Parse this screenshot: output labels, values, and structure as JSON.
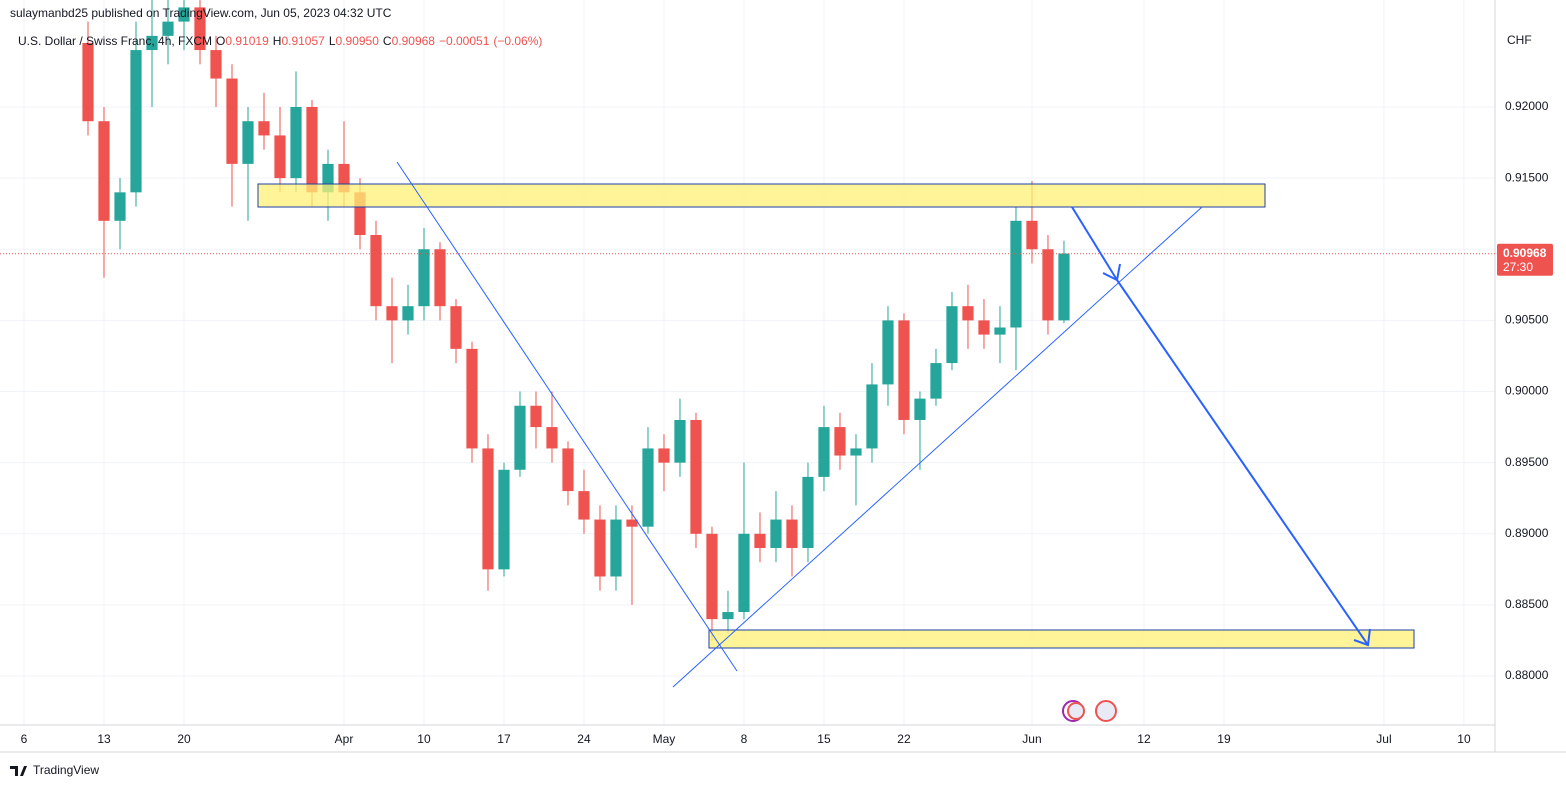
{
  "header": "sulaymanbd25 published on TradingView.com, Jun 05, 2023 04:32 UTC",
  "branding": "TradingView",
  "chart_data": {
    "type": "candlestick",
    "legend": {
      "symbol": "U.S. Dollar / Swiss Franc, 4h, FXCM",
      "open_prefix": "O",
      "open": {
        "value": 0.91019,
        "label": "0.91019"
      },
      "high_prefix": "H",
      "high": {
        "value": 0.91057,
        "label": "0.91057"
      },
      "low_prefix": "L",
      "low": {
        "value": 0.9095,
        "label": "0.90950"
      },
      "close_prefix": "C",
      "close": {
        "value": 0.90968,
        "label": "0.90968"
      },
      "change": {
        "value": -0.00051,
        "label": "−0.00051"
      },
      "change_pct": {
        "value": -0.06,
        "label": "(−0.06%)"
      }
    },
    "y_unit": "CHF",
    "last_price": {
      "value": 0.90968,
      "label": "0.90968"
    },
    "countdown": "27:30",
    "up_color": "#26a69a",
    "down_color": "#ef5350",
    "grid": true,
    "x": [
      4,
      5,
      6,
      7,
      8,
      9,
      10,
      11,
      12,
      13,
      14,
      15,
      16,
      17,
      18,
      19,
      20,
      21,
      22,
      23,
      24,
      25,
      26,
      27,
      28,
      29,
      30,
      31,
      32,
      33,
      34,
      35,
      36,
      37,
      38,
      39,
      40,
      41,
      42,
      43,
      44,
      45,
      46,
      47,
      48,
      49,
      50,
      51,
      52,
      53,
      54,
      55,
      56,
      57,
      58,
      59,
      60,
      61,
      62,
      63,
      64,
      65
    ],
    "open": [
      0.9245,
      0.919,
      0.912,
      0.914,
      0.924,
      0.925,
      0.926,
      0.927,
      0.924,
      0.922,
      0.916,
      0.919,
      0.918,
      0.915,
      0.92,
      0.914,
      0.916,
      0.914,
      0.911,
      0.906,
      0.905,
      0.906,
      0.91,
      0.906,
      0.903,
      0.896,
      0.8875,
      0.8945,
      0.899,
      0.8975,
      0.896,
      0.893,
      0.891,
      0.887,
      0.891,
      0.8905,
      0.896,
      0.895,
      0.898,
      0.89,
      0.884,
      0.8845,
      0.89,
      0.889,
      0.891,
      0.889,
      0.894,
      0.8975,
      0.8955,
      0.896,
      0.9005,
      0.905,
      0.898,
      0.8995,
      0.902,
      0.906,
      0.905,
      0.904,
      0.9045,
      0.912,
      0.91,
      0.905
    ],
    "high": [
      0.926,
      0.92,
      0.915,
      0.926,
      0.928,
      0.929,
      0.929,
      0.928,
      0.925,
      0.923,
      0.92,
      0.921,
      0.92,
      0.9225,
      0.9205,
      0.917,
      0.919,
      0.915,
      0.912,
      0.908,
      0.9075,
      0.9115,
      0.9105,
      0.9065,
      0.9035,
      0.897,
      0.895,
      0.9,
      0.9,
      0.9,
      0.8965,
      0.8945,
      0.892,
      0.892,
      0.892,
      0.8975,
      0.897,
      0.8995,
      0.8985,
      0.8905,
      0.886,
      0.895,
      0.8915,
      0.893,
      0.892,
      0.895,
      0.899,
      0.8985,
      0.897,
      0.902,
      0.906,
      0.9055,
      0.9,
      0.903,
      0.907,
      0.9075,
      0.9065,
      0.906,
      0.913,
      0.9148,
      0.911,
      0.9106
    ],
    "low": [
      0.918,
      0.908,
      0.91,
      0.913,
      0.92,
      0.923,
      0.924,
      0.923,
      0.92,
      0.913,
      0.912,
      0.917,
      0.914,
      0.914,
      0.913,
      0.912,
      0.913,
      0.91,
      0.905,
      0.902,
      0.904,
      0.905,
      0.905,
      0.902,
      0.895,
      0.886,
      0.887,
      0.894,
      0.896,
      0.895,
      0.892,
      0.89,
      0.886,
      0.886,
      0.885,
      0.89,
      0.893,
      0.894,
      0.889,
      0.8825,
      0.883,
      0.884,
      0.888,
      0.888,
      0.887,
      0.888,
      0.893,
      0.8945,
      0.892,
      0.895,
      0.899,
      0.897,
      0.8945,
      0.899,
      0.9015,
      0.903,
      0.903,
      0.902,
      0.9015,
      0.909,
      0.904,
      0.9048
    ],
    "close": [
      0.919,
      0.912,
      0.914,
      0.924,
      0.925,
      0.926,
      0.927,
      0.924,
      0.922,
      0.916,
      0.919,
      0.918,
      0.915,
      0.92,
      0.914,
      0.916,
      0.914,
      0.911,
      0.906,
      0.905,
      0.906,
      0.91,
      0.906,
      0.903,
      0.896,
      0.8875,
      0.8945,
      0.899,
      0.8975,
      0.896,
      0.893,
      0.891,
      0.887,
      0.891,
      0.8905,
      0.896,
      0.895,
      0.898,
      0.89,
      0.884,
      0.8845,
      0.89,
      0.889,
      0.891,
      0.889,
      0.894,
      0.8975,
      0.8955,
      0.896,
      0.9005,
      0.905,
      0.898,
      0.8995,
      0.902,
      0.906,
      0.905,
      0.904,
      0.9045,
      0.912,
      0.91,
      0.905,
      0.9097
    ],
    "xlim": [
      -1.5,
      91.94
    ],
    "xticks": [
      {
        "value": 0,
        "label": "6"
      },
      {
        "value": 5,
        "label": "13"
      },
      {
        "value": 10,
        "label": "20"
      },
      {
        "value": 20,
        "label": "Apr"
      },
      {
        "value": 25,
        "label": "10"
      },
      {
        "value": 30,
        "label": "17"
      },
      {
        "value": 35,
        "label": "24"
      },
      {
        "value": 40,
        "label": "May"
      },
      {
        "value": 45,
        "label": "8"
      },
      {
        "value": 50,
        "label": "15"
      },
      {
        "value": 55,
        "label": "22"
      },
      {
        "value": 63,
        "label": "Jun"
      },
      {
        "value": 70,
        "label": "12"
      },
      {
        "value": 75,
        "label": "19"
      },
      {
        "value": 85,
        "label": "Jul"
      },
      {
        "value": 90,
        "label": "10"
      }
    ],
    "ylim": [
      0.87656,
      0.92752
    ],
    "yticks": [
      {
        "value": 0.88,
        "label": "0.88000"
      },
      {
        "value": 0.885,
        "label": "0.88500"
      },
      {
        "value": 0.89,
        "label": "0.89000"
      },
      {
        "value": 0.895,
        "label": "0.89500"
      },
      {
        "value": 0.9,
        "label": "0.90000"
      },
      {
        "value": 0.905,
        "label": "0.90500"
      },
      {
        "value": 0.91,
        "label": "0.91000"
      },
      {
        "value": 0.915,
        "label": "0.91500"
      },
      {
        "value": 0.92,
        "label": "0.92000"
      }
    ]
  }
}
